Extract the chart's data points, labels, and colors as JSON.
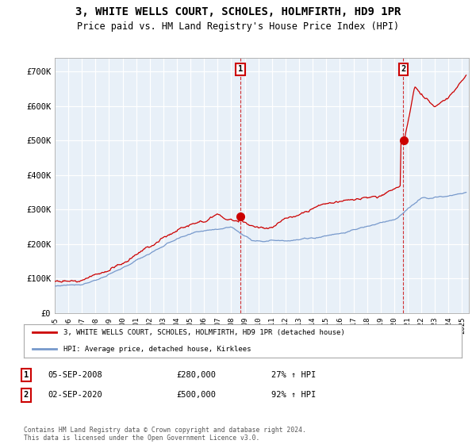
{
  "title": "3, WHITE WELLS COURT, SCHOLES, HOLMFIRTH, HD9 1PR",
  "subtitle": "Price paid vs. HM Land Registry's House Price Index (HPI)",
  "title_fontsize": 10,
  "subtitle_fontsize": 8.5,
  "ylabel_ticks": [
    "£0",
    "£100K",
    "£200K",
    "£300K",
    "£400K",
    "£500K",
    "£600K",
    "£700K"
  ],
  "ytick_values": [
    0,
    100000,
    200000,
    300000,
    400000,
    500000,
    600000,
    700000
  ],
  "ylim": [
    0,
    740000
  ],
  "xlim_start": 1995.0,
  "xlim_end": 2025.5,
  "xtick_years": [
    1995,
    1996,
    1997,
    1998,
    1999,
    2000,
    2001,
    2002,
    2003,
    2004,
    2005,
    2006,
    2007,
    2008,
    2009,
    2010,
    2011,
    2012,
    2013,
    2014,
    2015,
    2016,
    2017,
    2018,
    2019,
    2020,
    2021,
    2022,
    2023,
    2024,
    2025
  ],
  "purchase1_date": 2008.67,
  "purchase1_value": 280000,
  "purchase1_label": "1",
  "purchase2_date": 2020.67,
  "purchase2_value": 500000,
  "purchase2_label": "2",
  "hpi_line_color": "#7799cc",
  "price_line_color": "#cc0000",
  "annotation_box_color": "#cc0000",
  "grid_color": "#cccccc",
  "chart_bg_color": "#e8f0f8",
  "legend_label_price": "3, WHITE WELLS COURT, SCHOLES, HOLMFIRTH, HD9 1PR (detached house)",
  "legend_label_hpi": "HPI: Average price, detached house, Kirklees",
  "table_rows": [
    {
      "num": "1",
      "date": "05-SEP-2008",
      "price": "£280,000",
      "change": "27% ↑ HPI"
    },
    {
      "num": "2",
      "date": "02-SEP-2020",
      "price": "£500,000",
      "change": "92% ↑ HPI"
    }
  ],
  "footer": "Contains HM Land Registry data © Crown copyright and database right 2024.\nThis data is licensed under the Open Government Licence v3.0.",
  "background_color": "#ffffff"
}
